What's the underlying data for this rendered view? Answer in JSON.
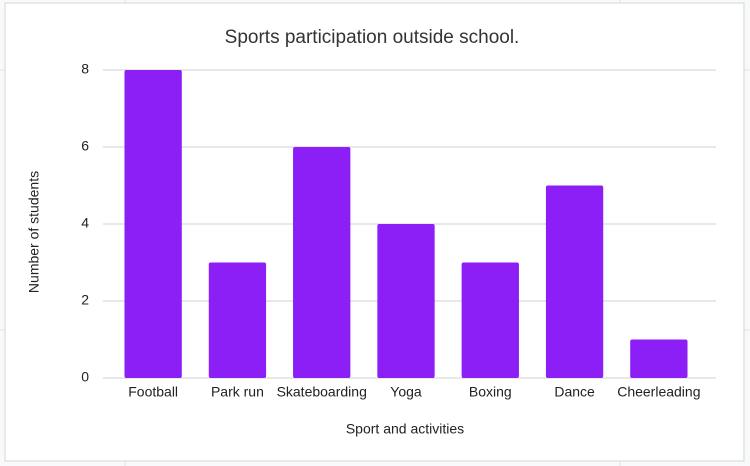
{
  "chart_data": {
    "type": "bar",
    "title": "Sports participation outside school.",
    "x_label": "Sport and activities",
    "y_label": "Number of students",
    "categories": [
      "Football",
      "Park run",
      "Skateboarding",
      "Yoga",
      "Boxing",
      "Dance",
      "Cheerleading"
    ],
    "values": [
      8,
      3,
      6,
      4,
      3,
      5,
      1
    ],
    "color": "#8c1ef6",
    "ylim": [
      0,
      8
    ],
    "yticks": [
      0,
      2,
      4,
      6,
      8
    ],
    "grid": true
  }
}
